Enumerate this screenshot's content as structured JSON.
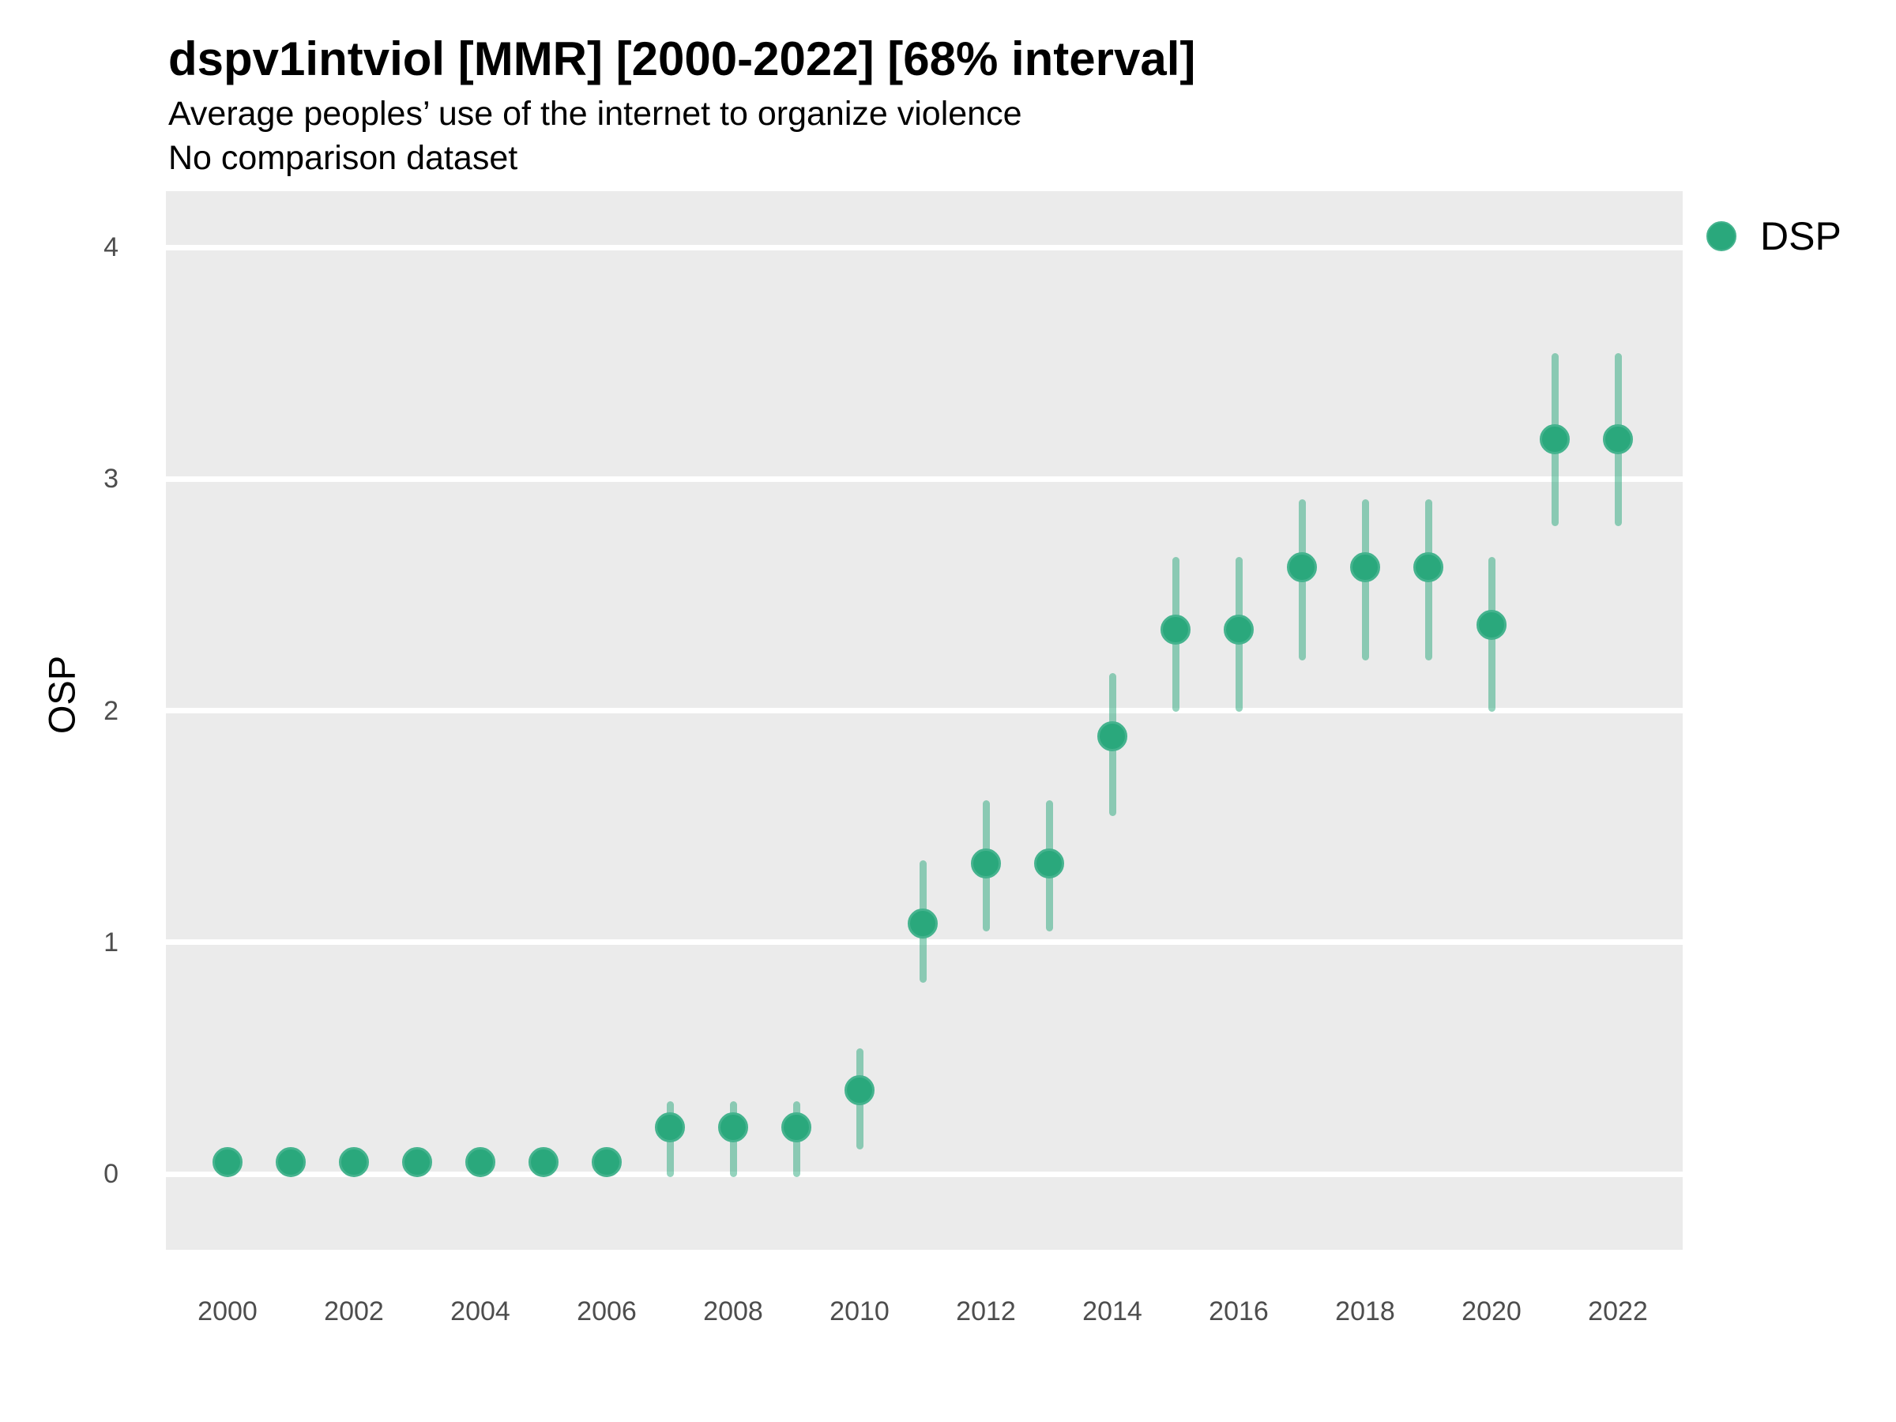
{
  "header": {
    "title": "dspv1intviol [MMR] [2000-2022] [68% interval]",
    "subtitle_line1": "Average peoples’ use of the internet to organize violence",
    "subtitle_line2": "No comparison dataset"
  },
  "legend": {
    "position": "right-top",
    "items": [
      {
        "label": "DSP",
        "marker": "circle-icon",
        "marker_color": "#2aa87c"
      }
    ]
  },
  "axes": {
    "y_label": "OSP",
    "y_ticks": [
      0,
      1,
      2,
      3,
      4
    ],
    "x_ticks": [
      2000,
      2002,
      2004,
      2006,
      2008,
      2010,
      2012,
      2014,
      2016,
      2018,
      2020,
      2022
    ]
  },
  "colors": {
    "point_fill": "#2aa87c",
    "point_ring": "#45b38e",
    "interval_bar": "rgba(42,168,124,0.5)",
    "panel_background": "#ebebeb",
    "gridline": "#ffffff",
    "tick_text": "#4d4d4d"
  },
  "chart_data": {
    "type": "scatter",
    "title": "dspv1intviol [MMR] [2000-2022] [68% interval]",
    "subtitle": "Average peoples’ use of the internet to organize violence",
    "note": "No comparison dataset",
    "xlabel": "",
    "ylabel": "OSP",
    "interval": "68%",
    "xlim": [
      1999,
      2023
    ],
    "ylim": [
      -0.33,
      4.24
    ],
    "grid": "major-horizontal-only",
    "legend_position": "top-right-outside",
    "series": [
      {
        "name": "DSP",
        "points": [
          {
            "year": 2000,
            "value": 0.05,
            "low": 0.0,
            "high": 0.1
          },
          {
            "year": 2001,
            "value": 0.05,
            "low": 0.0,
            "high": 0.1
          },
          {
            "year": 2002,
            "value": 0.05,
            "low": 0.0,
            "high": 0.1
          },
          {
            "year": 2003,
            "value": 0.05,
            "low": 0.0,
            "high": 0.1
          },
          {
            "year": 2004,
            "value": 0.05,
            "low": 0.0,
            "high": 0.1
          },
          {
            "year": 2005,
            "value": 0.05,
            "low": 0.0,
            "high": 0.1
          },
          {
            "year": 2006,
            "value": 0.05,
            "low": 0.0,
            "high": 0.1
          },
          {
            "year": 2007,
            "value": 0.2,
            "low": 0.0,
            "high": 0.3
          },
          {
            "year": 2008,
            "value": 0.2,
            "low": 0.0,
            "high": 0.3
          },
          {
            "year": 2009,
            "value": 0.2,
            "low": 0.0,
            "high": 0.3
          },
          {
            "year": 2010,
            "value": 0.36,
            "low": 0.12,
            "high": 0.53
          },
          {
            "year": 2011,
            "value": 1.08,
            "low": 0.84,
            "high": 1.34
          },
          {
            "year": 2012,
            "value": 1.34,
            "low": 1.06,
            "high": 1.6
          },
          {
            "year": 2013,
            "value": 1.34,
            "low": 1.06,
            "high": 1.6
          },
          {
            "year": 2014,
            "value": 1.89,
            "low": 1.56,
            "high": 2.15
          },
          {
            "year": 2015,
            "value": 2.35,
            "low": 2.01,
            "high": 2.65
          },
          {
            "year": 2016,
            "value": 2.35,
            "low": 2.01,
            "high": 2.65
          },
          {
            "year": 2017,
            "value": 2.62,
            "low": 2.23,
            "high": 2.9
          },
          {
            "year": 2018,
            "value": 2.62,
            "low": 2.23,
            "high": 2.9
          },
          {
            "year": 2019,
            "value": 2.62,
            "low": 2.23,
            "high": 2.9
          },
          {
            "year": 2020,
            "value": 2.37,
            "low": 2.01,
            "high": 2.65
          },
          {
            "year": 2021,
            "value": 3.17,
            "low": 2.81,
            "high": 3.53
          },
          {
            "year": 2022,
            "value": 3.17,
            "low": 2.81,
            "high": 3.53
          }
        ]
      }
    ]
  }
}
